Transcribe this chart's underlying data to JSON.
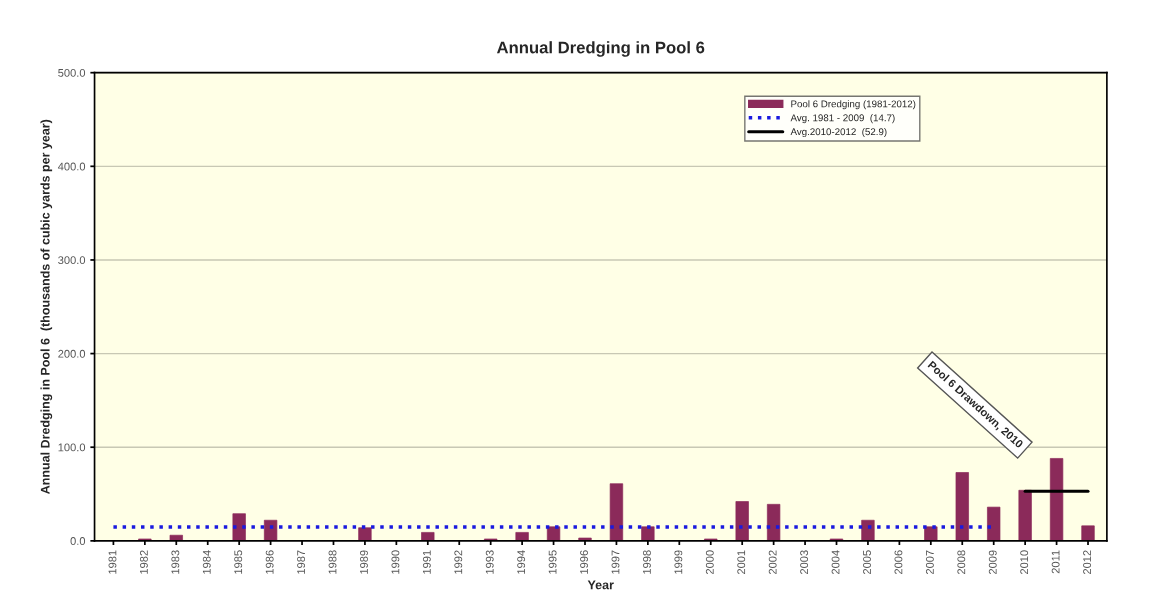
{
  "chart_data": {
    "type": "bar",
    "title": "Annual Dredging in Pool 6",
    "xlabel": "Year",
    "ylabel": "Annual Dredging in Pool 6  (thousands of cubic yards per year)",
    "categories": [
      "1981",
      "1982",
      "1983",
      "1984",
      "1985",
      "1986",
      "1987",
      "1988",
      "1989",
      "1990",
      "1991",
      "1992",
      "1993",
      "1994",
      "1995",
      "1996",
      "1997",
      "1998",
      "1999",
      "2000",
      "2001",
      "2002",
      "2003",
      "2004",
      "2005",
      "2006",
      "2007",
      "2008",
      "2009",
      "2010",
      "2011",
      "2012"
    ],
    "series": [
      {
        "name": "Pool 6 Dredging (1981-2012)",
        "color": "#8b2a5a",
        "values": [
          0,
          2,
          6,
          0,
          29,
          22,
          0,
          0,
          14,
          0,
          9,
          0,
          2,
          9,
          15,
          3,
          61,
          15,
          0,
          2,
          42,
          39,
          0,
          2,
          22,
          0,
          15,
          73,
          36,
          54,
          88,
          16
        ]
      },
      {
        "name": "Avg. 1981 - 2009  (14.7)",
        "type": "line",
        "color": "#1a1adf",
        "line_style": "dotted",
        "values": [
          14.7,
          14.7,
          14.7,
          14.7,
          14.7,
          14.7,
          14.7,
          14.7,
          14.7,
          14.7,
          14.7,
          14.7,
          14.7,
          14.7,
          14.7,
          14.7,
          14.7,
          14.7,
          14.7,
          14.7,
          14.7,
          14.7,
          14.7,
          14.7,
          14.7,
          14.7,
          14.7,
          14.7,
          14.7,
          null,
          null,
          null
        ]
      },
      {
        "name": "Avg.2010-2012  (52.9)",
        "type": "line",
        "color": "#000000",
        "line_style": "solid",
        "values": [
          null,
          null,
          null,
          null,
          null,
          null,
          null,
          null,
          null,
          null,
          null,
          null,
          null,
          null,
          null,
          null,
          null,
          null,
          null,
          null,
          null,
          null,
          null,
          null,
          null,
          null,
          null,
          null,
          null,
          52.9,
          52.9,
          52.9
        ]
      }
    ],
    "ylim": [
      0,
      500
    ],
    "yticks": [
      {
        "value": 0,
        "label": "0.0"
      },
      {
        "value": 100,
        "label": "100.0"
      },
      {
        "value": 200,
        "label": "200.0"
      },
      {
        "value": 300,
        "label": "300.0"
      },
      {
        "value": 400,
        "label": "400.0"
      },
      {
        "value": 500,
        "label": "500.0"
      }
    ],
    "grid": "y",
    "legend": "top right",
    "annotations": [
      "Pool 6 Drawdown, 2010"
    ]
  }
}
